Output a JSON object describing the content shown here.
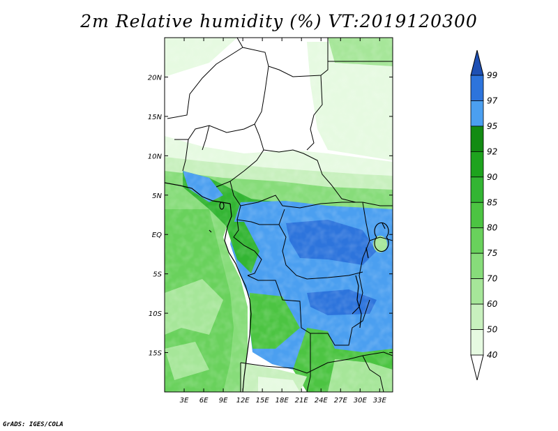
{
  "title": "2m Relative humidity (%) VT:2019120300",
  "credit": "GrADS: IGES/COLA",
  "map": {
    "lon_range": [
      0,
      35
    ],
    "lat_range": [
      -20,
      25
    ],
    "lon_ticks": [
      {
        "value": 3,
        "label": "3E"
      },
      {
        "value": 6,
        "label": "6E"
      },
      {
        "value": 9,
        "label": "9E"
      },
      {
        "value": 12,
        "label": "12E"
      },
      {
        "value": 15,
        "label": "15E"
      },
      {
        "value": 18,
        "label": "18E"
      },
      {
        "value": 21,
        "label": "21E"
      },
      {
        "value": 24,
        "label": "24E"
      },
      {
        "value": 27,
        "label": "27E"
      },
      {
        "value": 30,
        "label": "30E"
      },
      {
        "value": 33,
        "label": "33E"
      }
    ],
    "lat_ticks": [
      {
        "value": 20,
        "label": "20N"
      },
      {
        "value": 15,
        "label": "15N"
      },
      {
        "value": 10,
        "label": "10N"
      },
      {
        "value": 5,
        "label": "5N"
      },
      {
        "value": 0,
        "label": "EQ"
      },
      {
        "value": -5,
        "label": "5S"
      },
      {
        "value": -10,
        "label": "10S"
      },
      {
        "value": -15,
        "label": "15S"
      }
    ]
  },
  "colorbar": {
    "levels": [
      "40",
      "50",
      "60",
      "70",
      "75",
      "80",
      "85",
      "90",
      "92",
      "95",
      "97",
      "99"
    ],
    "colors": [
      "#ffffff",
      "#e6fae1",
      "#c8f0be",
      "#a6e699",
      "#87dc7a",
      "#69d15c",
      "#4cc442",
      "#33b533",
      "#1ea31e",
      "#138b13",
      "#4b9ff0",
      "#2d74dc",
      "#1e50b4"
    ]
  }
}
